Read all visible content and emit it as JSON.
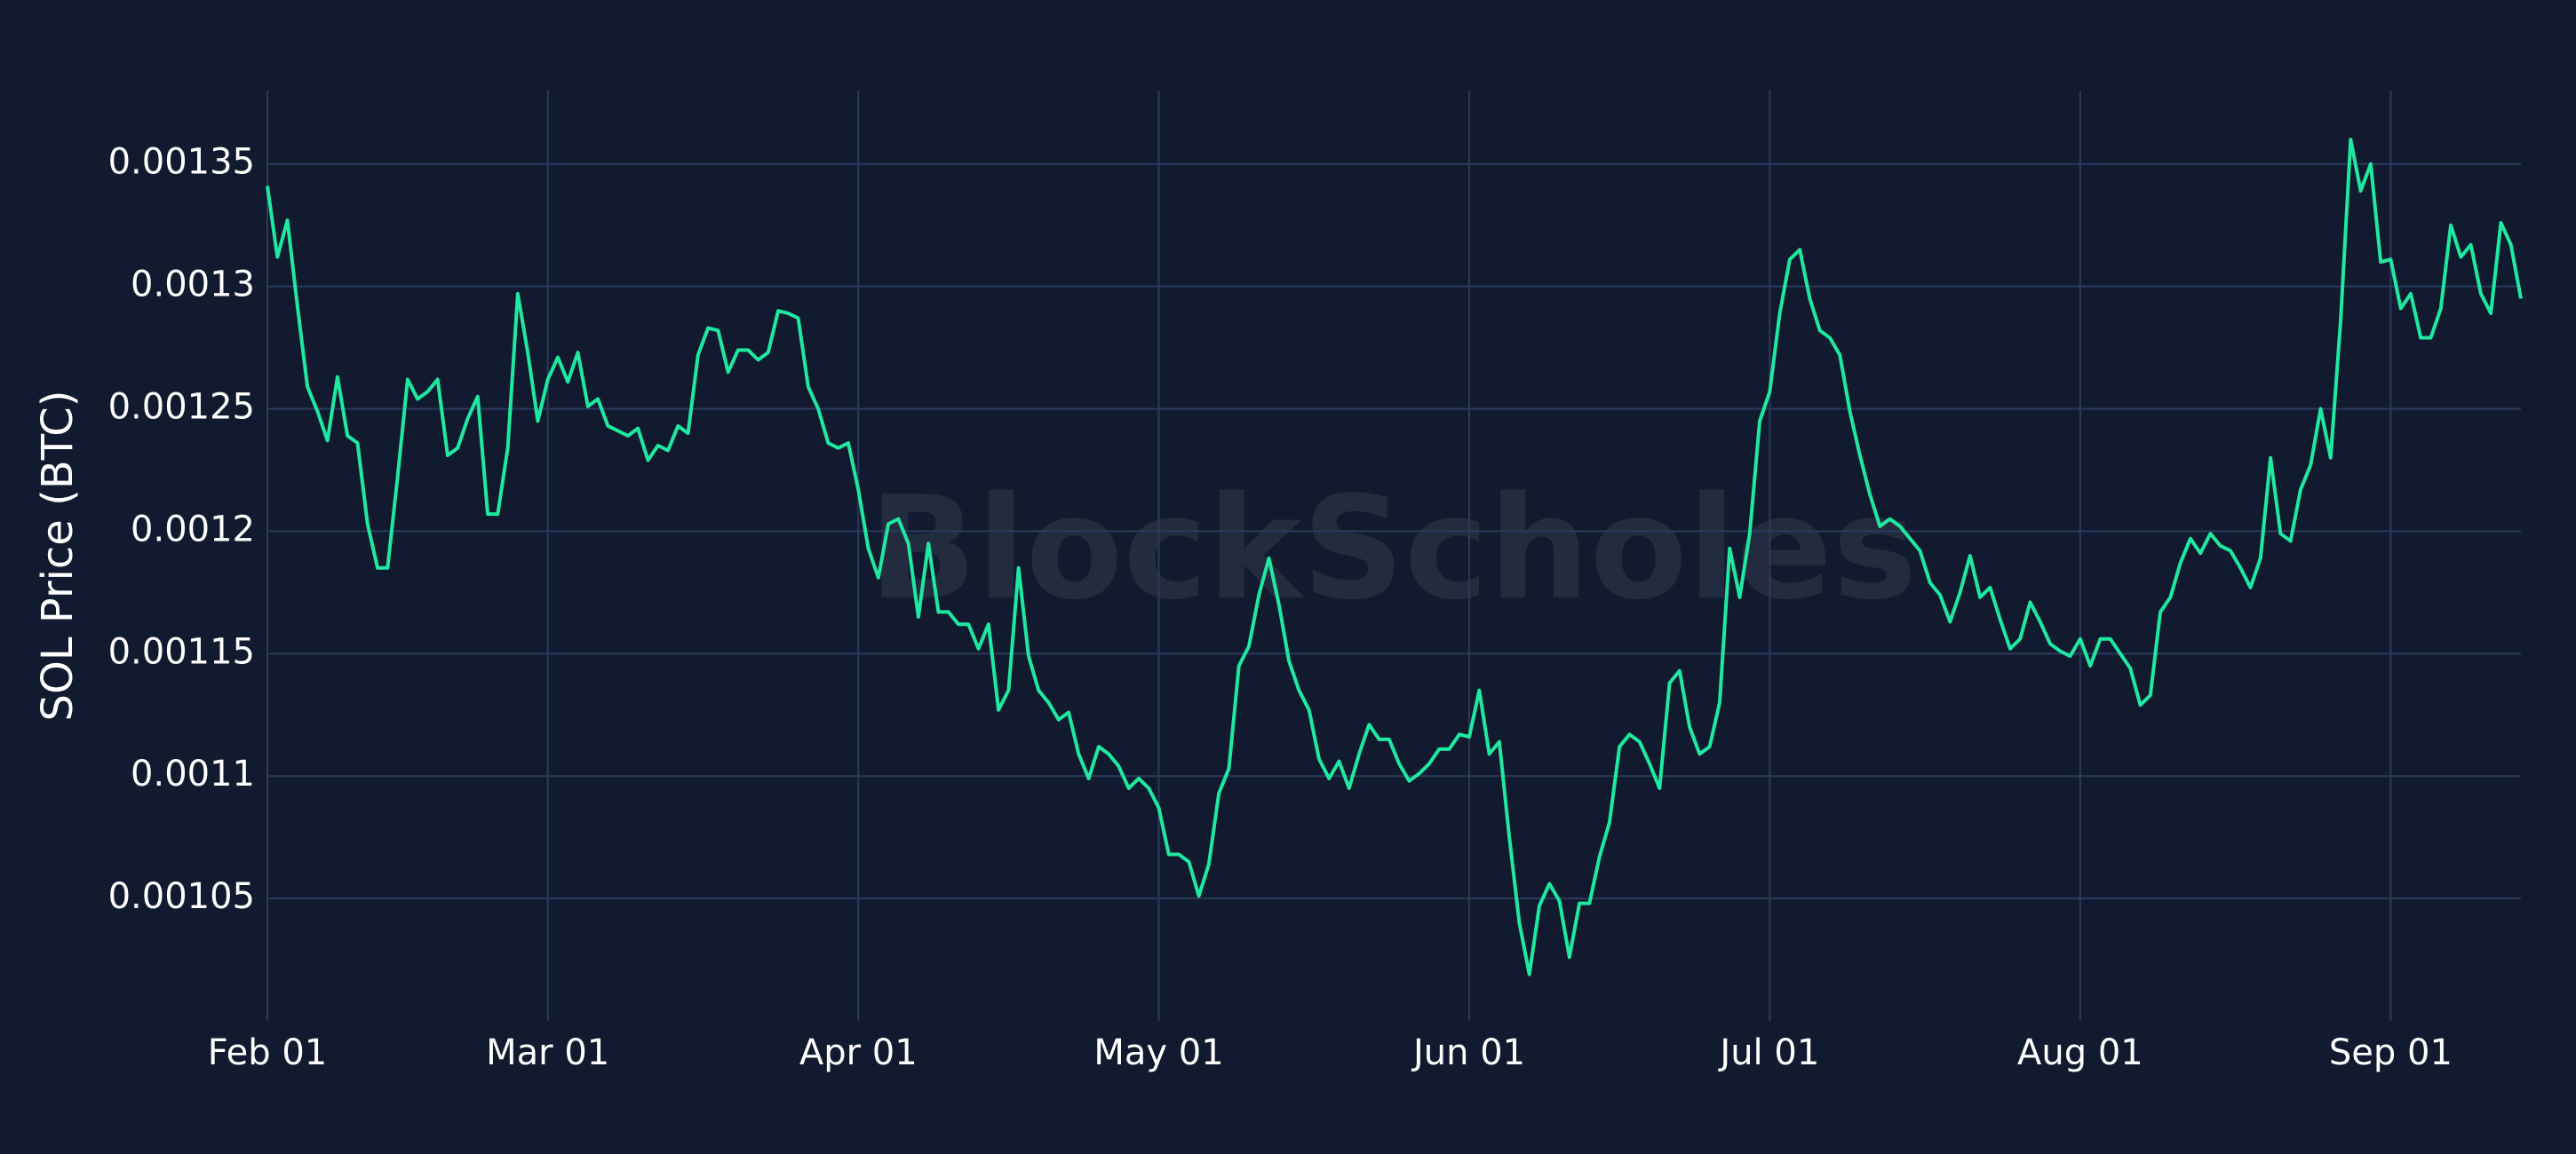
{
  "chart_data": {
    "type": "line",
    "ylabel": "SOL Price (BTC)",
    "watermark": "BlockScholes",
    "grid": true,
    "x": [
      "02-01",
      "02-02",
      "02-03",
      "02-04",
      "02-05",
      "02-06",
      "02-07",
      "02-08",
      "02-09",
      "02-10",
      "02-11",
      "02-12",
      "02-13",
      "02-14",
      "02-15",
      "02-16",
      "02-17",
      "02-18",
      "02-19",
      "02-20",
      "02-21",
      "02-22",
      "02-23",
      "02-24",
      "02-25",
      "02-26",
      "02-27",
      "02-28",
      "03-01",
      "03-02",
      "03-03",
      "03-04",
      "03-05",
      "03-06",
      "03-07",
      "03-08",
      "03-09",
      "03-10",
      "03-11",
      "03-12",
      "03-13",
      "03-14",
      "03-15",
      "03-16",
      "03-17",
      "03-18",
      "03-19",
      "03-20",
      "03-21",
      "03-22",
      "03-23",
      "03-24",
      "03-25",
      "03-26",
      "03-27",
      "03-28",
      "03-29",
      "03-30",
      "03-31",
      "04-01",
      "04-02",
      "04-03",
      "04-04",
      "04-05",
      "04-06",
      "04-07",
      "04-08",
      "04-09",
      "04-10",
      "04-11",
      "04-12",
      "04-13",
      "04-14",
      "04-15",
      "04-16",
      "04-17",
      "04-18",
      "04-19",
      "04-20",
      "04-21",
      "04-22",
      "04-23",
      "04-24",
      "04-25",
      "04-26",
      "04-27",
      "04-28",
      "04-29",
      "04-30",
      "05-01",
      "05-02",
      "05-03",
      "05-04",
      "05-05",
      "05-06",
      "05-07",
      "05-08",
      "05-09",
      "05-10",
      "05-11",
      "05-12",
      "05-13",
      "05-14",
      "05-15",
      "05-16",
      "05-17",
      "05-18",
      "05-19",
      "05-20",
      "05-21",
      "05-22",
      "05-23",
      "05-24",
      "05-25",
      "05-26",
      "05-27",
      "05-28",
      "05-29",
      "05-30",
      "05-31",
      "06-01",
      "06-02",
      "06-03",
      "06-04",
      "06-05",
      "06-06",
      "06-07",
      "06-08",
      "06-09",
      "06-10",
      "06-11",
      "06-12",
      "06-13",
      "06-14",
      "06-15",
      "06-16",
      "06-17",
      "06-18",
      "06-19",
      "06-20",
      "06-21",
      "06-22",
      "06-23",
      "06-24",
      "06-25",
      "06-26",
      "06-27",
      "06-28",
      "06-29",
      "06-30",
      "07-01",
      "07-02",
      "07-03",
      "07-04",
      "07-05",
      "07-06",
      "07-07",
      "07-08",
      "07-09",
      "07-10",
      "07-11",
      "07-12",
      "07-13",
      "07-14",
      "07-15",
      "07-16",
      "07-17",
      "07-18",
      "07-19",
      "07-20",
      "07-21",
      "07-22",
      "07-23",
      "07-24",
      "07-25",
      "07-26",
      "07-27",
      "07-28",
      "07-29",
      "07-30",
      "07-31",
      "08-01",
      "08-02",
      "08-03",
      "08-04",
      "08-05",
      "08-06",
      "08-07",
      "08-08",
      "08-09",
      "08-10",
      "08-11",
      "08-12",
      "08-13",
      "08-14",
      "08-15",
      "08-16",
      "08-17",
      "08-18",
      "08-19",
      "08-20",
      "08-21",
      "08-22",
      "08-23",
      "08-24",
      "08-25",
      "08-26",
      "08-27",
      "08-28",
      "08-29",
      "08-30",
      "08-31",
      "09-01",
      "09-02",
      "09-03",
      "09-04",
      "09-05",
      "09-06",
      "09-07",
      "09-08",
      "09-09",
      "09-10",
      "09-11",
      "09-12",
      "09-13",
      "09-14"
    ],
    "series": [
      {
        "color": "#1fe8a0",
        "values": [
          0.001341,
          0.001312,
          0.001327,
          0.001292,
          0.001259,
          0.001249,
          0.001237,
          0.001263,
          0.001239,
          0.001236,
          0.001203,
          0.001185,
          0.001185,
          0.001222,
          0.001262,
          0.001254,
          0.001257,
          0.001262,
          0.001231,
          0.001234,
          0.001246,
          0.001255,
          0.001207,
          0.001207,
          0.001234,
          0.001297,
          0.001273,
          0.001245,
          0.001262,
          0.001271,
          0.001261,
          0.001273,
          0.001251,
          0.001254,
          0.001243,
          0.001241,
          0.001239,
          0.001242,
          0.001229,
          0.001235,
          0.001233,
          0.001243,
          0.00124,
          0.001272,
          0.001283,
          0.001282,
          0.001265,
          0.001274,
          0.001274,
          0.00127,
          0.001273,
          0.00129,
          0.001289,
          0.001287,
          0.001259,
          0.00125,
          0.001236,
          0.001234,
          0.001236,
          0.001217,
          0.001193,
          0.001181,
          0.001203,
          0.001205,
          0.001195,
          0.001165,
          0.001195,
          0.001167,
          0.001167,
          0.001162,
          0.001162,
          0.001152,
          0.001162,
          0.001127,
          0.001135,
          0.001185,
          0.001149,
          0.001135,
          0.00113,
          0.001123,
          0.001126,
          0.001109,
          0.001099,
          0.001112,
          0.001109,
          0.001104,
          0.001095,
          0.001099,
          0.001095,
          0.001087,
          0.001068,
          0.001068,
          0.001065,
          0.001051,
          0.001064,
          0.001093,
          0.001103,
          0.001145,
          0.001153,
          0.001174,
          0.001189,
          0.00117,
          0.001147,
          0.001135,
          0.001127,
          0.001107,
          0.001099,
          0.001106,
          0.001095,
          0.001109,
          0.001121,
          0.001115,
          0.001115,
          0.001105,
          0.001098,
          0.001101,
          0.001105,
          0.001111,
          0.001111,
          0.001117,
          0.001116,
          0.001135,
          0.001109,
          0.001114,
          0.001075,
          0.00104,
          0.001019,
          0.001047,
          0.001056,
          0.001049,
          0.001026,
          0.001048,
          0.001048,
          0.001067,
          0.001081,
          0.001112,
          0.001117,
          0.001114,
          0.001105,
          0.001095,
          0.001138,
          0.001143,
          0.00112,
          0.001109,
          0.001112,
          0.00113,
          0.001193,
          0.001173,
          0.001199,
          0.001245,
          0.001257,
          0.001289,
          0.001311,
          0.001315,
          0.001295,
          0.001282,
          0.001279,
          0.001272,
          0.001249,
          0.001231,
          0.001215,
          0.001202,
          0.001205,
          0.001202,
          0.001197,
          0.001192,
          0.001179,
          0.001174,
          0.001163,
          0.001175,
          0.00119,
          0.001173,
          0.001177,
          0.001164,
          0.001152,
          0.001156,
          0.001171,
          0.001163,
          0.001154,
          0.001151,
          0.001149,
          0.001156,
          0.001145,
          0.001156,
          0.001156,
          0.00115,
          0.001144,
          0.001129,
          0.001133,
          0.001167,
          0.001173,
          0.001187,
          0.001197,
          0.001191,
          0.001199,
          0.001194,
          0.001192,
          0.001185,
          0.001177,
          0.001189,
          0.00123,
          0.001199,
          0.001196,
          0.001217,
          0.001227,
          0.00125,
          0.00123,
          0.001286,
          0.00136,
          0.001339,
          0.00135,
          0.00131,
          0.001311,
          0.001291,
          0.001297,
          0.001279,
          0.001279,
          0.001291,
          0.001325,
          0.001312,
          0.001317,
          0.001297,
          0.001289,
          0.001326,
          0.001317,
          0.001295
        ]
      }
    ],
    "xlim": [
      "02-01",
      "09-14"
    ],
    "xticks": [
      {
        "value": "02-01",
        "label": "Feb 01"
      },
      {
        "value": "03-01",
        "label": "Mar 01"
      },
      {
        "value": "04-01",
        "label": "Apr 01"
      },
      {
        "value": "05-01",
        "label": "May 01"
      },
      {
        "value": "06-01",
        "label": "Jun 01"
      },
      {
        "value": "07-01",
        "label": "Jul 01"
      },
      {
        "value": "08-01",
        "label": "Aug 01"
      },
      {
        "value": "09-01",
        "label": "Sep 01"
      }
    ],
    "ylim": [
      0.001,
      0.00138
    ],
    "yticks": [
      0.00105,
      0.0011,
      0.00115,
      0.0012,
      0.00125,
      0.0013,
      0.00135
    ]
  }
}
